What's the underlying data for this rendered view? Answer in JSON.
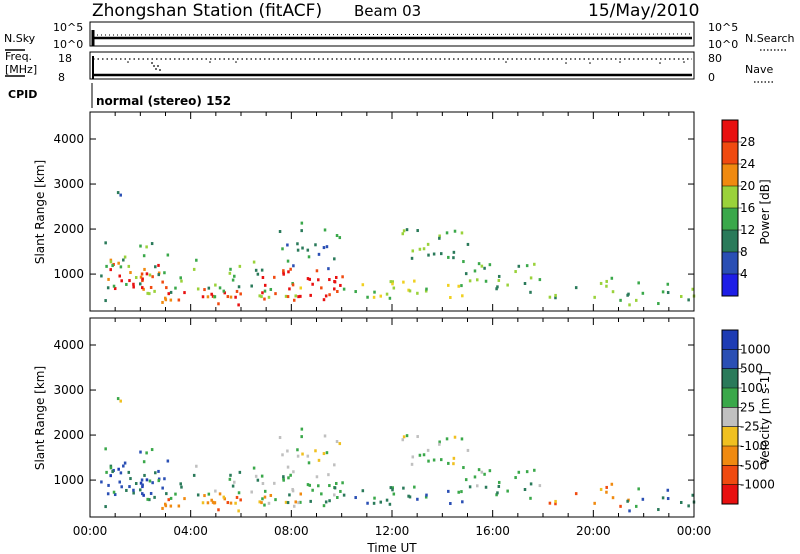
{
  "header": {
    "station": "Zhongshan Station (fitACF)",
    "beam": "Beam 03",
    "date": "15/May/2010"
  },
  "status_panels": {
    "nsky_label": "N.Sky",
    "nsearch_label": "N.Search",
    "freq_label_1": "Freq.",
    "freq_label_2": "[MHz]",
    "nave_label": "Nave",
    "cpid_label": "CPID",
    "nsky_ticks": [
      "10^5",
      "10^0"
    ],
    "nsearch_ticks": [
      "10^5",
      "10^0"
    ],
    "freq_ticks": [
      "18",
      "8"
    ],
    "nave_ticks": [
      "80",
      "0"
    ],
    "cpid_text": "normal (stereo) 152"
  },
  "colors": {
    "power_scale": [
      "#1e1ee6",
      "#2a4fb4",
      "#2a7a5a",
      "#3aa84a",
      "#9ad23a",
      "#f0d020",
      "#f08a10",
      "#f04a10",
      "#e81010"
    ],
    "velocity_scale": [
      "#e81010",
      "#f04a10",
      "#f08a10",
      "#f0c020",
      "#c0c0c0",
      "#3aa84a",
      "#2a7a5a",
      "#2a4fb4",
      "#1e3cb4"
    ]
  },
  "chart_data": [
    {
      "type": "heatmap",
      "title": "",
      "xlabel": "Time UT",
      "ylabel": "Slant Range [km]",
      "xlim": [
        "00:00",
        "24:00"
      ],
      "ylim": [
        180,
        4600
      ],
      "x_ticks": [
        "00:00",
        "04:00",
        "08:00",
        "12:00",
        "16:00",
        "20:00",
        "00:00"
      ],
      "y_ticks": [
        1000,
        2000,
        3000,
        4000
      ],
      "colorbar_label": "Power [dB]",
      "colorbar_ticks": [
        4,
        8,
        12,
        16,
        20,
        24,
        28
      ],
      "colorbar_range": [
        0,
        32
      ]
    },
    {
      "type": "heatmap",
      "title": "",
      "xlabel": "Time UT",
      "ylabel": "Slant Range [km]",
      "xlim": [
        "00:00",
        "24:00"
      ],
      "ylim": [
        180,
        4600
      ],
      "x_ticks": [
        "00:00",
        "04:00",
        "08:00",
        "12:00",
        "16:00",
        "20:00",
        "00:00"
      ],
      "y_ticks": [
        1000,
        2000,
        3000,
        4000
      ],
      "colorbar_label": "Velocity [m s-1]",
      "colorbar_ticks": [
        "1000",
        "500",
        "100",
        "25",
        "-25",
        "-100",
        "-500",
        "-1000"
      ]
    }
  ]
}
